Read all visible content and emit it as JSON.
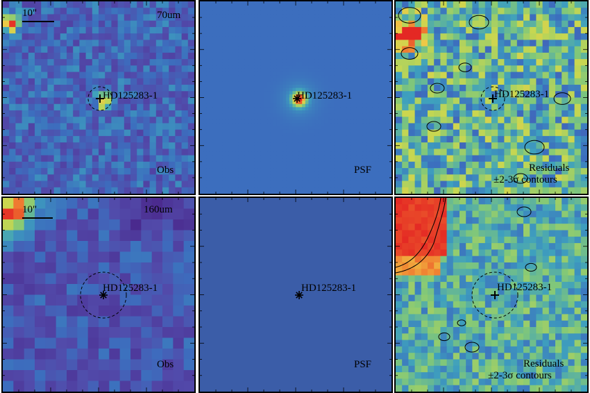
{
  "colors": {
    "background_blue": "#4a7ec2",
    "deep_blue": "#3b5da8",
    "purple": "#5a3fa0",
    "teal": "#3fa6b0",
    "green": "#8cc86a",
    "yellow": "#e9d84a",
    "orange": "#f0a040",
    "red": "#e8302a"
  },
  "rows": [
    {
      "band": "70um",
      "scale_bar": "10\"",
      "panels": {
        "obs": {
          "label": "Obs",
          "source": "HD125283-1"
        },
        "psf": {
          "label": "PSF",
          "source": "HD125283-1"
        },
        "residuals": {
          "label": "Residuals",
          "contour_label": "±2-3σ contours",
          "source": "HD125283-1"
        }
      }
    },
    {
      "band": "160um",
      "scale_bar": "10\"",
      "panels": {
        "obs": {
          "label": "Obs",
          "source": "HD125283-1"
        },
        "psf": {
          "label": "PSF",
          "source": "HD125283-1"
        },
        "residuals": {
          "label": "Residuals",
          "contour_label": "±2-3σ contours",
          "source": "HD125283-1"
        }
      }
    }
  ]
}
